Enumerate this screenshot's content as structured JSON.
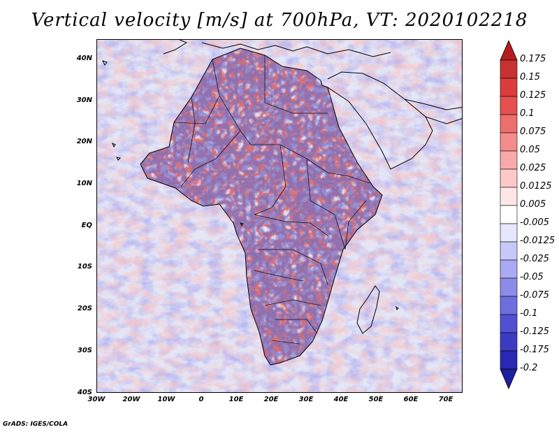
{
  "title": "Vertical velocity [m/s] at 700hPa, VT: 2020102218",
  "footer": "GrADS: IGES/COLA",
  "map": {
    "lat_labels": [
      "40N",
      "30N",
      "20N",
      "10N",
      "EQ",
      "10S",
      "20S",
      "30S",
      "40S"
    ],
    "lon_labels": [
      "30W",
      "20W",
      "10W",
      "0",
      "10E",
      "20E",
      "30E",
      "40E",
      "50E",
      "60E",
      "70E"
    ],
    "lat_range": [
      -40,
      45
    ],
    "lon_range": [
      -30,
      75
    ]
  },
  "colorbar": {
    "labels": [
      "0.175",
      "0.15",
      "0.125",
      "0.1",
      "0.075",
      "0.05",
      "0.025",
      "0.0125",
      "0.005",
      "-0.005",
      "-0.0125",
      "-0.025",
      "-0.05",
      "-0.075",
      "-0.1",
      "-0.125",
      "-0.175",
      "-0.2"
    ],
    "colors": [
      "#b41e1e",
      "#c83232",
      "#dc3c3c",
      "#e65050",
      "#ee6e6e",
      "#f48c8c",
      "#f8aaaa",
      "#fcc8c8",
      "#ffe6e6",
      "#ffffff",
      "#e6e6ff",
      "#c8c8f8",
      "#aaaaf2",
      "#8c8ce8",
      "#6e6ede",
      "#5050d2",
      "#3c3cc3",
      "#2828b4",
      "#1e1ea0"
    ]
  }
}
